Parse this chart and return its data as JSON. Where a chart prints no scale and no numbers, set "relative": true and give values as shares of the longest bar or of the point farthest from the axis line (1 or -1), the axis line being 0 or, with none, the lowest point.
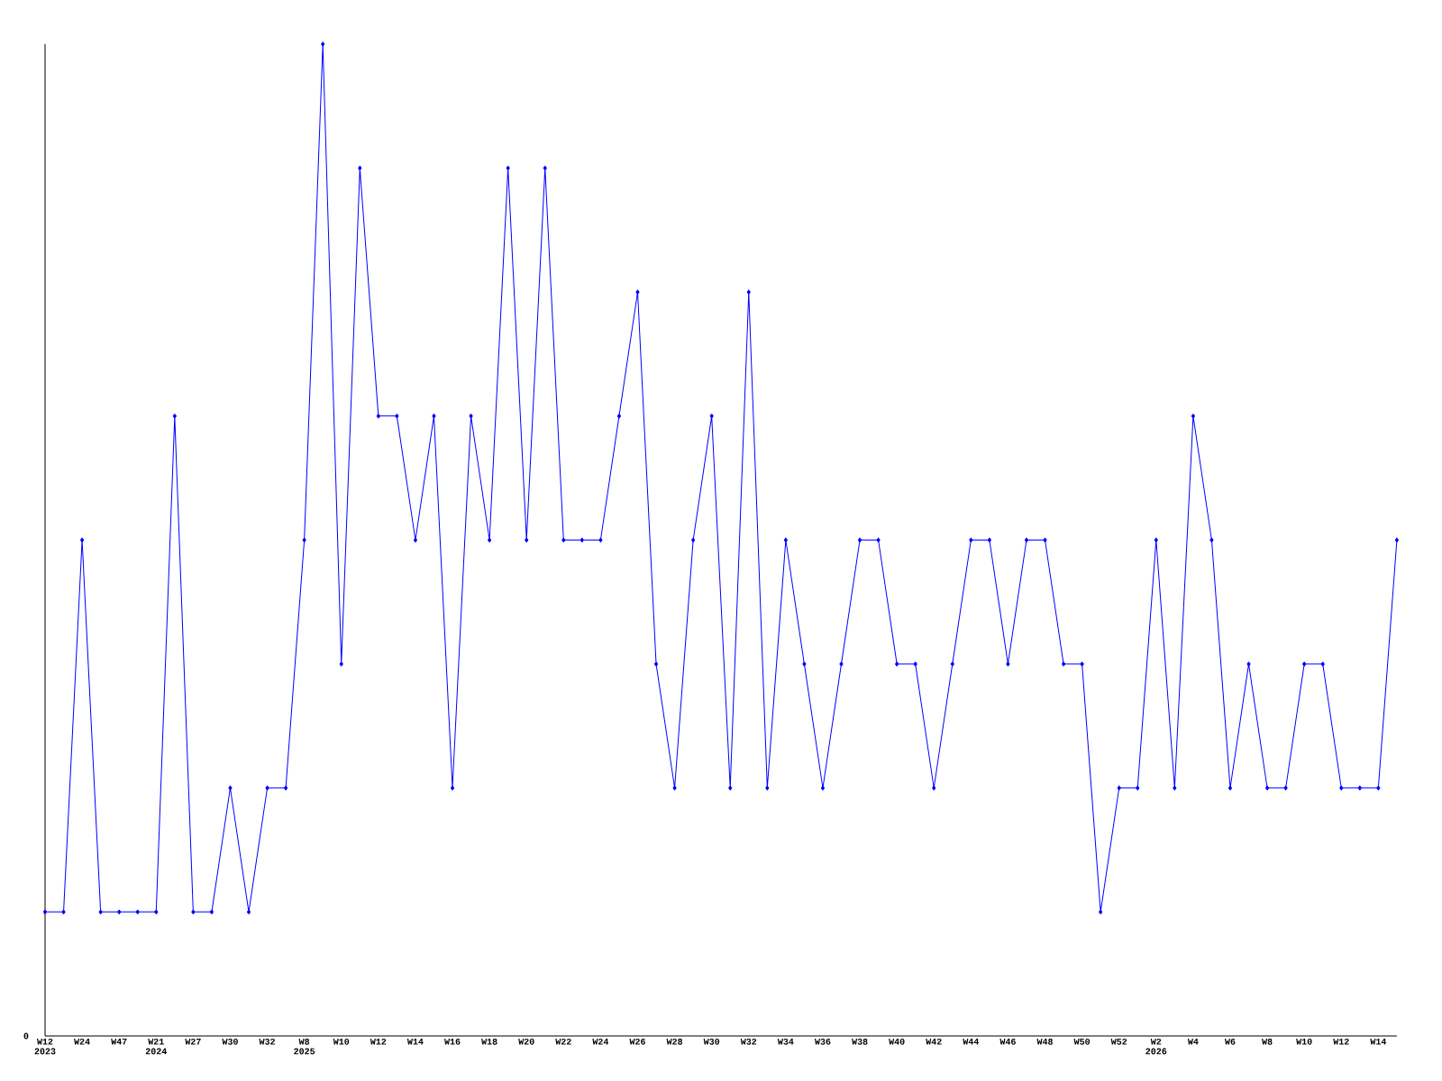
{
  "chart_data": {
    "type": "line",
    "relative": true,
    "marker": "diamond",
    "line_style": "solid",
    "categories": [
      "W12 2023",
      null,
      "W24",
      null,
      "W47",
      null,
      "W21 2024",
      null,
      "W27",
      null,
      "W30",
      null,
      "W32",
      null,
      "W8 2025",
      null,
      "W10",
      null,
      "W12",
      null,
      "W14",
      null,
      "W16",
      null,
      "W18",
      null,
      "W20",
      null,
      "W22",
      null,
      "W24",
      null,
      "W26",
      null,
      "W28",
      null,
      "W30",
      null,
      "W32",
      null,
      "W34",
      null,
      "W36",
      null,
      "W38",
      null,
      "W40",
      null,
      "W42",
      null,
      "W44",
      null,
      "W46",
      null,
      "W48",
      null,
      "W50",
      null,
      "W52",
      null,
      "W2 2026",
      null,
      "W4",
      null,
      "W6",
      null,
      "W8",
      null,
      "W10",
      null,
      "W12",
      null,
      "W14",
      null
    ],
    "series": [
      {
        "color": "#0000ff",
        "values": [
          0.125,
          0.125,
          0.5,
          0.125,
          0.125,
          0.125,
          0.125,
          0.625,
          0.125,
          0.125,
          0.25,
          0.125,
          0.25,
          0.25,
          0.5,
          1,
          0.375,
          0.875,
          0.625,
          0.625,
          0.5,
          0.625,
          0.25,
          0.625,
          0.5,
          0.875,
          0.5,
          0.875,
          0.5,
          0.5,
          0.5,
          0.625,
          0.75,
          0.375,
          0.25,
          0.5,
          0.625,
          0.25,
          0.75,
          0.25,
          0.5,
          0.375,
          0.25,
          0.375,
          0.5,
          0.5,
          0.375,
          0.375,
          0.25,
          0.375,
          0.5,
          0.5,
          0.375,
          0.5,
          0.5,
          0.375,
          0.375,
          0.125,
          0.25,
          0.25,
          0.5,
          0.25,
          0.625,
          0.5,
          0.25,
          0.375,
          0.25,
          0.25,
          0.375,
          0.375,
          0.25,
          0.25,
          0.25,
          0.5
        ]
      }
    ],
    "annotations": [
      "0"
    ]
  }
}
